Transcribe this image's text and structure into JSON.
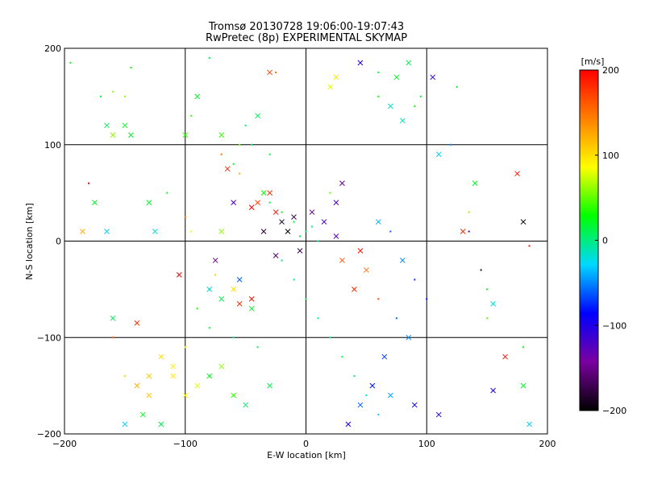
{
  "chart_data": {
    "type": "scatter",
    "title": "Tromsø 20130728 19:06:00-19:07:43",
    "subtitle": "RwPretec (8p) EXPERIMENTAL SKYMAP",
    "xlabel": "E-W location [km]",
    "ylabel": "N-S location [km]",
    "xlim": [
      -200,
      200
    ],
    "ylim": [
      -200,
      200
    ],
    "xticks": [
      -200,
      -100,
      0,
      100,
      200
    ],
    "yticks": [
      -200,
      -100,
      0,
      100,
      200
    ],
    "xtick_labels": [
      "−200",
      "−100",
      "0",
      "100",
      "200"
    ],
    "ytick_labels": [
      "−200",
      "−100",
      "0",
      "100",
      "200"
    ],
    "grid": true,
    "colorbar": {
      "label": "[m/s]",
      "range": [
        -200,
        200
      ],
      "ticks": [
        200,
        100,
        0,
        -100,
        -200
      ],
      "tick_labels": [
        "200",
        "100",
        "0",
        "−100",
        "−200"
      ],
      "colormap": [
        "#000000",
        "#7a00a0",
        "#0000ff",
        "#00d8ff",
        "#00ff00",
        "#ffff00",
        "#ff8000",
        "#ff0000"
      ]
    },
    "marker_legend": {
      "small": "dot",
      "large": "cross"
    },
    "points": [
      [
        0,
        10,
        5,
        0
      ],
      [
        -5,
        5,
        10,
        0
      ],
      [
        5,
        15,
        0,
        0
      ],
      [
        10,
        0,
        -5,
        0
      ],
      [
        -10,
        20,
        15,
        0
      ],
      [
        -20,
        30,
        20,
        0
      ],
      [
        -30,
        40,
        10,
        0
      ],
      [
        -35,
        50,
        30,
        1
      ],
      [
        -40,
        130,
        10,
        1
      ],
      [
        -50,
        120,
        5,
        0
      ],
      [
        -45,
        100,
        0,
        0
      ],
      [
        -30,
        90,
        15,
        0
      ],
      [
        -60,
        80,
        20,
        0
      ],
      [
        -20,
        -20,
        0,
        0
      ],
      [
        -10,
        -40,
        -5,
        0
      ],
      [
        0,
        -60,
        10,
        0
      ],
      [
        10,
        -80,
        0,
        0
      ],
      [
        20,
        -100,
        -10,
        0
      ],
      [
        30,
        -120,
        15,
        0
      ],
      [
        40,
        -140,
        5,
        0
      ],
      [
        50,
        -160,
        -20,
        0
      ],
      [
        60,
        -180,
        -30,
        0
      ],
      [
        -30,
        -150,
        10,
        1
      ],
      [
        -50,
        -170,
        5,
        1
      ],
      [
        -80,
        -140,
        20,
        1
      ],
      [
        -120,
        -120,
        100,
        1
      ],
      [
        -130,
        -140,
        110,
        1
      ],
      [
        -110,
        -130,
        95,
        1
      ],
      [
        -100,
        -110,
        90,
        0
      ],
      [
        -140,
        -150,
        120,
        1
      ],
      [
        -130,
        -160,
        110,
        1
      ],
      [
        -150,
        -140,
        105,
        0
      ],
      [
        -90,
        -150,
        80,
        1
      ],
      [
        -70,
        -130,
        60,
        1
      ],
      [
        -60,
        -160,
        40,
        1
      ],
      [
        -110,
        -140,
        95,
        1
      ],
      [
        -100,
        -160,
        85,
        1
      ],
      [
        -40,
        -110,
        10,
        0
      ],
      [
        -60,
        -100,
        0,
        0
      ],
      [
        -80,
        -90,
        20,
        0
      ],
      [
        -90,
        -70,
        30,
        0
      ],
      [
        60,
        20,
        -40,
        1
      ],
      [
        70,
        10,
        -60,
        0
      ],
      [
        80,
        -20,
        -50,
        1
      ],
      [
        90,
        -40,
        -70,
        0
      ],
      [
        100,
        -60,
        -80,
        0
      ],
      [
        75,
        -80,
        -60,
        0
      ],
      [
        85,
        -100,
        -50,
        1
      ],
      [
        65,
        -120,
        -70,
        1
      ],
      [
        55,
        -150,
        -80,
        1
      ],
      [
        45,
        -170,
        -60,
        1
      ],
      [
        35,
        -190,
        -100,
        1
      ],
      [
        70,
        -160,
        -40,
        1
      ],
      [
        90,
        -170,
        -90,
        1
      ],
      [
        110,
        -180,
        -100,
        1
      ],
      [
        50,
        -30,
        150,
        1
      ],
      [
        40,
        -50,
        180,
        1
      ],
      [
        60,
        -60,
        170,
        0
      ],
      [
        30,
        -20,
        160,
        1
      ],
      [
        45,
        -10,
        190,
        1
      ],
      [
        20,
        50,
        50,
        0
      ],
      [
        25,
        40,
        -120,
        1
      ],
      [
        30,
        60,
        -150,
        1
      ],
      [
        -30,
        50,
        180,
        1
      ],
      [
        -40,
        40,
        170,
        1
      ],
      [
        -45,
        35,
        200,
        1
      ],
      [
        -25,
        30,
        195,
        1
      ],
      [
        -55,
        70,
        120,
        0
      ],
      [
        -65,
        75,
        180,
        1
      ],
      [
        -70,
        90,
        150,
        0
      ],
      [
        -60,
        -50,
        100,
        1
      ],
      [
        -45,
        -60,
        190,
        1
      ],
      [
        -55,
        -65,
        180,
        1
      ],
      [
        -75,
        -35,
        110,
        0
      ],
      [
        -95,
        10,
        90,
        0
      ],
      [
        -80,
        -50,
        150,
        0
      ],
      [
        -15,
        10,
        -200,
        1
      ],
      [
        -10,
        25,
        -180,
        1
      ],
      [
        5,
        30,
        -150,
        1
      ],
      [
        -25,
        -15,
        -160,
        1
      ],
      [
        15,
        20,
        -120,
        1
      ],
      [
        25,
        5,
        -130,
        1
      ],
      [
        -5,
        -10,
        -170,
        1
      ],
      [
        -20,
        20,
        -190,
        1
      ],
      [
        -35,
        10,
        -180,
        1
      ],
      [
        -130,
        40,
        20,
        1
      ],
      [
        -150,
        150,
        60,
        0
      ],
      [
        -160,
        110,
        60,
        1
      ],
      [
        -180,
        60,
        200,
        0
      ],
      [
        -175,
        40,
        20,
        1
      ],
      [
        -185,
        10,
        120,
        1
      ],
      [
        -165,
        10,
        -30,
        1
      ],
      [
        -125,
        10,
        -20,
        1
      ],
      [
        -140,
        -85,
        180,
        1
      ],
      [
        -160,
        -100,
        160,
        0
      ],
      [
        -105,
        -35,
        200,
        1
      ],
      [
        -100,
        25,
        150,
        0
      ],
      [
        -115,
        50,
        20,
        0
      ],
      [
        -70,
        10,
        60,
        1
      ],
      [
        -60,
        40,
        -120,
        1
      ],
      [
        -75,
        -20,
        -150,
        1
      ],
      [
        -80,
        -50,
        -20,
        1
      ],
      [
        -70,
        -60,
        10,
        1
      ],
      [
        -55,
        -40,
        -60,
        1
      ],
      [
        -45,
        -70,
        20,
        1
      ],
      [
        105,
        170,
        -110,
        1
      ],
      [
        125,
        160,
        20,
        0
      ],
      [
        110,
        90,
        -30,
        1
      ],
      [
        120,
        100,
        -50,
        0
      ],
      [
        140,
        60,
        20,
        1
      ],
      [
        135,
        30,
        60,
        0
      ],
      [
        130,
        10,
        180,
        1
      ],
      [
        135,
        10,
        -120,
        0
      ],
      [
        175,
        70,
        190,
        1
      ],
      [
        180,
        20,
        -200,
        1
      ],
      [
        185,
        -5,
        190,
        0
      ],
      [
        145,
        -30,
        -180,
        0
      ],
      [
        150,
        -50,
        20,
        0
      ],
      [
        155,
        -65,
        -20,
        1
      ],
      [
        150,
        -80,
        50,
        0
      ],
      [
        165,
        -120,
        190,
        1
      ],
      [
        155,
        -155,
        -100,
        1
      ],
      [
        180,
        -110,
        30,
        0
      ],
      [
        180,
        -150,
        20,
        1
      ],
      [
        185,
        -190,
        -30,
        1
      ],
      [
        60,
        150,
        30,
        0
      ],
      [
        70,
        140,
        -20,
        1
      ],
      [
        80,
        125,
        -10,
        1
      ],
      [
        90,
        140,
        30,
        0
      ],
      [
        95,
        150,
        20,
        0
      ],
      [
        75,
        170,
        20,
        1
      ],
      [
        85,
        185,
        10,
        1
      ],
      [
        45,
        185,
        -100,
        1
      ],
      [
        60,
        175,
        20,
        0
      ],
      [
        20,
        160,
        80,
        1
      ],
      [
        25,
        170,
        100,
        1
      ],
      [
        -70,
        110,
        40,
        1
      ],
      [
        -55,
        100,
        50,
        0
      ],
      [
        -30,
        175,
        170,
        1
      ],
      [
        -25,
        175,
        150,
        0
      ],
      [
        -80,
        190,
        10,
        0
      ],
      [
        -90,
        150,
        20,
        1
      ],
      [
        -95,
        130,
        40,
        0
      ],
      [
        -100,
        110,
        40,
        1
      ],
      [
        -145,
        110,
        20,
        1
      ],
      [
        -150,
        120,
        20,
        1
      ],
      [
        -160,
        155,
        60,
        0
      ],
      [
        -170,
        150,
        20,
        0
      ],
      [
        -165,
        120,
        10,
        1
      ],
      [
        -145,
        180,
        30,
        0
      ],
      [
        -160,
        -80,
        10,
        1
      ],
      [
        -195,
        185,
        20,
        0
      ],
      [
        -150,
        -190,
        -30,
        1
      ],
      [
        -135,
        -180,
        20,
        1
      ],
      [
        -120,
        -190,
        10,
        1
      ]
    ]
  }
}
